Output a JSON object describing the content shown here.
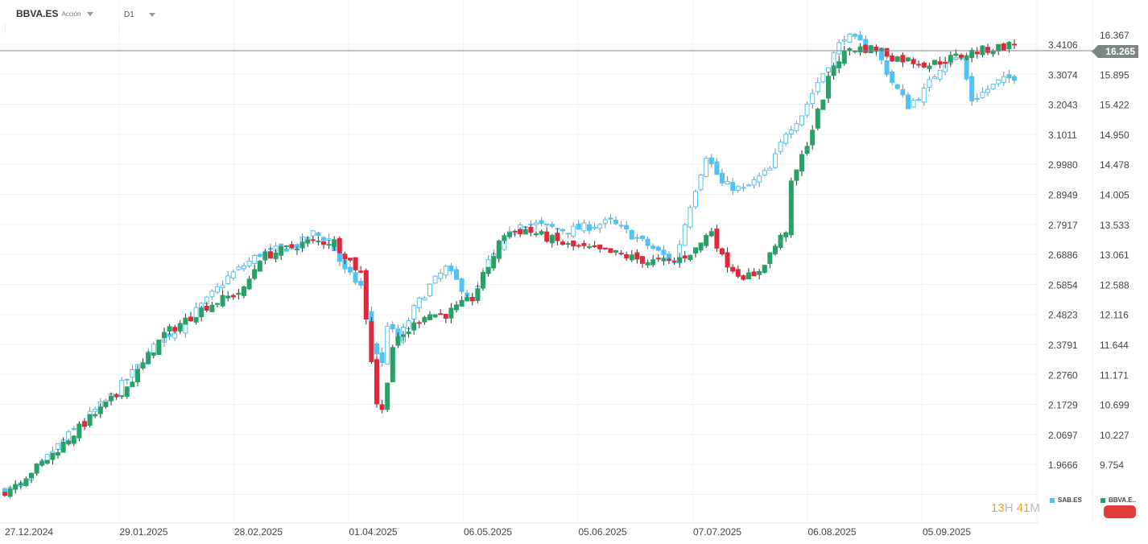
{
  "header": {
    "symbol": "BBVA.ES",
    "type": "Acción",
    "timeframe": "D1"
  },
  "timer": {
    "hours": "13",
    "h": "H",
    "minutes": "41",
    "m": "M"
  },
  "current_price": "16.265",
  "chart_data": {
    "type": "candlestick",
    "x_labels": [
      "27.12.2024",
      "29.01.2025",
      "28.02.2025",
      "01.04.2025",
      "06.05.2025",
      "05.06.2025",
      "07.07.2025",
      "06.08.2025",
      "05.09.2025"
    ],
    "y_ticks_left": [
      "3.4106",
      "3.3074",
      "3.2043",
      "3.1011",
      "2.9980",
      "2.8949",
      "2.7917",
      "2.6886",
      "2.5854",
      "2.4823",
      "2.3791",
      "2.2760",
      "2.1729",
      "2.0697",
      "1.9666"
    ],
    "y_ticks_right": [
      "16.367",
      "15.895",
      "15.422",
      "14.950",
      "14.478",
      "14.005",
      "13.533",
      "13.061",
      "12.588",
      "12.116",
      "11.644",
      "11.171",
      "10.699",
      "10.227",
      "9.754"
    ],
    "series": [
      {
        "name": "SAB.ES",
        "color": "#4fc3f7",
        "axis": "left",
        "close_waypoints": [
          [
            0,
            1.875
          ],
          [
            4,
            1.9
          ],
          [
            9,
            2.013
          ],
          [
            15,
            2.12
          ],
          [
            20,
            2.2
          ],
          [
            24,
            2.28
          ],
          [
            29,
            2.39
          ],
          [
            33,
            2.44
          ],
          [
            38,
            2.53
          ],
          [
            42,
            2.61
          ],
          [
            48,
            2.69
          ],
          [
            55,
            2.72
          ],
          [
            58,
            2.76
          ],
          [
            61,
            2.74
          ],
          [
            64,
            2.63
          ],
          [
            67,
            2.58
          ],
          [
            69,
            2.39
          ],
          [
            71,
            2.31
          ],
          [
            72,
            2.45
          ],
          [
            74,
            2.39
          ],
          [
            77,
            2.5
          ],
          [
            80,
            2.58
          ],
          [
            83,
            2.64
          ],
          [
            88,
            2.53
          ],
          [
            91,
            2.66
          ],
          [
            97,
            2.8
          ],
          [
            106,
            2.77
          ],
          [
            114,
            2.8
          ],
          [
            121,
            2.72
          ],
          [
            126,
            2.66
          ],
          [
            129,
            2.86
          ],
          [
            132,
            3.03
          ],
          [
            135,
            2.93
          ],
          [
            139,
            2.91
          ],
          [
            144,
            2.98
          ],
          [
            147,
            3.11
          ],
          [
            150,
            3.17
          ],
          [
            153,
            3.28
          ],
          [
            158,
            3.44
          ],
          [
            164,
            3.39
          ],
          [
            167,
            3.28
          ],
          [
            170,
            3.2
          ],
          [
            173,
            3.25
          ],
          [
            177,
            3.36
          ],
          [
            180,
            3.36
          ],
          [
            182,
            3.22
          ],
          [
            187,
            3.28
          ],
          [
            190,
            3.3
          ]
        ]
      },
      {
        "name": "BBVA.E..",
        "color": "#26a269",
        "down_color": "#e0283a",
        "axis": "right",
        "close_waypoints": [
          [
            0,
            9.33
          ],
          [
            8,
            9.84
          ],
          [
            15,
            10.41
          ],
          [
            23,
            10.98
          ],
          [
            30,
            11.81
          ],
          [
            38,
            12.25
          ],
          [
            45,
            12.5
          ],
          [
            48,
            13.01
          ],
          [
            57,
            13.26
          ],
          [
            62,
            13.26
          ],
          [
            67,
            12.76
          ],
          [
            70,
            10.73
          ],
          [
            71,
            10.6
          ],
          [
            73,
            11.62
          ],
          [
            79,
            12.12
          ],
          [
            83,
            12.12
          ],
          [
            88,
            12.37
          ],
          [
            94,
            13.39
          ],
          [
            98,
            13.45
          ],
          [
            106,
            13.2
          ],
          [
            115,
            13.07
          ],
          [
            121,
            12.95
          ],
          [
            126,
            12.95
          ],
          [
            130,
            13.14
          ],
          [
            133,
            13.45
          ],
          [
            135,
            13.01
          ],
          [
            138,
            12.76
          ],
          [
            141,
            12.69
          ],
          [
            144,
            13.07
          ],
          [
            147,
            13.45
          ],
          [
            148,
            14.15
          ],
          [
            152,
            15.04
          ],
          [
            156,
            16.05
          ],
          [
            159,
            16.3
          ],
          [
            164,
            16.3
          ],
          [
            167,
            16.17
          ],
          [
            174,
            16.05
          ],
          [
            182,
            16.24
          ],
          [
            190,
            16.37
          ]
        ]
      }
    ]
  }
}
